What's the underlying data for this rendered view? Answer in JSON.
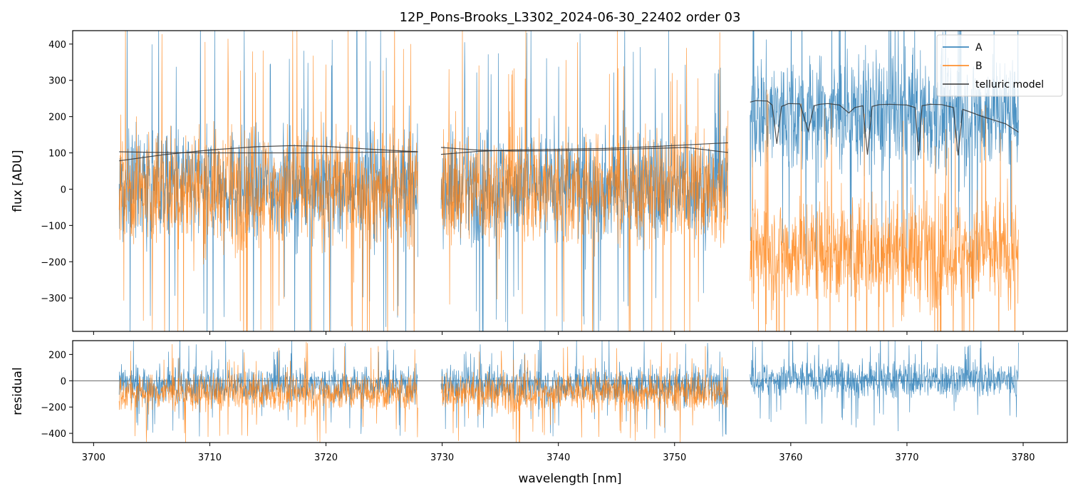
{
  "chart_data": {
    "type": "line",
    "title": "12P_Pons-Brooks_L3302_2024-06-30_22402  order 03",
    "xlabel": "wavelength [nm]",
    "xlim": [
      3698.2,
      3783.8
    ],
    "x_ticks": [
      3700,
      3710,
      3720,
      3730,
      3740,
      3750,
      3760,
      3770,
      3780
    ],
    "colors": {
      "A": "#1f77b4",
      "B": "#ff7f0e",
      "telluric": "#333333"
    },
    "legend_position": "top-right",
    "panels": [
      {
        "id": "flux",
        "ylabel": "flux [ADU]",
        "ylim": [
          -392,
          437
        ],
        "y_ticks": [
          -300,
          -200,
          -100,
          0,
          100,
          200,
          300,
          400
        ],
        "series": [
          {
            "name": "A",
            "segments": [
              {
                "x_range": [
                  3702.2,
                  3727.9
                ],
                "mean": 10,
                "amplitude": 140,
                "spike": 420
              },
              {
                "x_range": [
                  3729.9,
                  3754.6
                ],
                "mean": 10,
                "amplitude": 135,
                "spike": 410
              },
              {
                "x_range": [
                  3756.5,
                  3779.6
                ],
                "mean": 210,
                "amplitude": 150,
                "spike": 430
              }
            ]
          },
          {
            "name": "B",
            "segments": [
              {
                "x_range": [
                  3702.2,
                  3727.9
                ],
                "mean": 0,
                "amplitude": 150,
                "spike": 430
              },
              {
                "x_range": [
                  3729.9,
                  3754.6
                ],
                "mean": 0,
                "amplitude": 145,
                "spike": 420
              },
              {
                "x_range": [
                  3756.5,
                  3779.6
                ],
                "mean": -170,
                "amplitude": 140,
                "spike": 380
              }
            ]
          },
          {
            "name": "telluric model",
            "segments": [
              {
                "x": [
                  3702.2,
                  3706,
                  3710,
                  3714,
                  3717,
                  3720,
                  3724,
                  3727.9
                ],
                "y": [
                  78,
                  95,
                  108,
                  117,
                  120,
                  118,
                  110,
                  103
                ]
              },
              {
                "x": [
                  3702.2,
                  3706,
                  3710,
                  3714,
                  3718,
                  3722,
                  3727.9
                ],
                "y": [
                  103,
                  101,
                  100,
                  100,
                  100,
                  101,
                  103
                ]
              },
              {
                "x": [
                  3729.9,
                  3733,
                  3736,
                  3740,
                  3744,
                  3748,
                  3751,
                  3754.6
                ],
                "y": [
                  96,
                  104,
                  108,
                  110,
                  112,
                  117,
                  122,
                  128
                ]
              },
              {
                "x": [
                  3729.9,
                  3733,
                  3736,
                  3740,
                  3744,
                  3748,
                  3751,
                  3754.6
                ],
                "y": [
                  115,
                  108,
                  105,
                  106,
                  108,
                  112,
                  115,
                  101
                ]
              },
              {
                "x": [
                  3756.5,
                  3757,
                  3758,
                  3758.4,
                  3758.8,
                  3759.2,
                  3759.8,
                  3760.8,
                  3761.5,
                  3762.0,
                  3762.5,
                  3763.2,
                  3764.2,
                  3765.0,
                  3765.5,
                  3766.2,
                  3766.6,
                  3767.0,
                  3767.6,
                  3768.5,
                  3770.0,
                  3770.7,
                  3771.0,
                  3771.3,
                  3772.0,
                  3773.0,
                  3774.0,
                  3774.4,
                  3774.8,
                  3775.5,
                  3776.5,
                  3777.5,
                  3778.5,
                  3779.6
                ],
                "y": [
                  240,
                  244,
                  243,
                  232,
                  125,
                  228,
                  236,
                  235,
                  160,
                  230,
                  234,
                  236,
                  232,
                  210,
                  225,
                  230,
                  95,
                  228,
                  233,
                  234,
                  232,
                  225,
                  93,
                  230,
                  234,
                  233,
                  225,
                  93,
                  220,
                  212,
                  200,
                  190,
                  180,
                  157
                ]
              }
            ]
          }
        ]
      },
      {
        "id": "residual",
        "ylabel": "residual",
        "ylim": [
          -470,
          305
        ],
        "y_ticks": [
          -400,
          -200,
          0,
          200
        ],
        "series": [
          {
            "name": "A",
            "segments": [
              {
                "x_range": [
                  3702.2,
                  3727.9
                ],
                "mean": -30,
                "amplitude": 130,
                "spike": 330
              },
              {
                "x_range": [
                  3729.9,
                  3754.6
                ],
                "mean": -30,
                "amplitude": 130,
                "spike": 330
              },
              {
                "x_range": [
                  3756.5,
                  3779.6
                ],
                "mean": 10,
                "amplitude": 130,
                "spike": 330
              }
            ]
          },
          {
            "name": "B",
            "segments": [
              {
                "x_range": [
                  3702.2,
                  3727.9
                ],
                "mean": -90,
                "amplitude": 130,
                "spike": 330
              },
              {
                "x_range": [
                  3729.9,
                  3754.6
                ],
                "mean": -90,
                "amplitude": 130,
                "spike": 330
              }
            ]
          }
        ]
      }
    ]
  }
}
